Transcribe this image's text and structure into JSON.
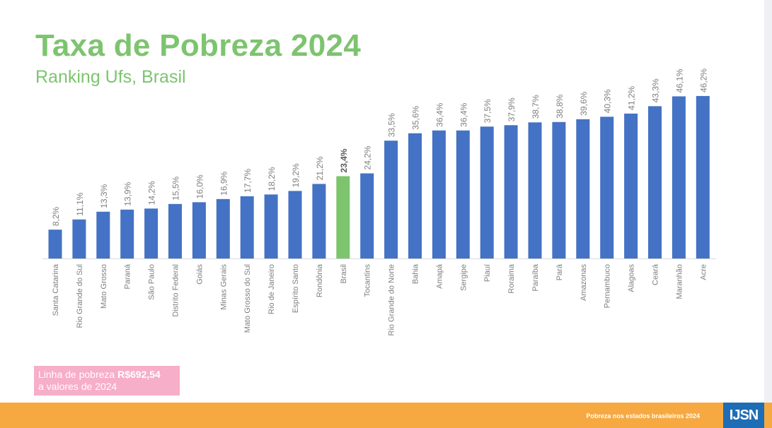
{
  "title": "Taxa de Pobreza 2024",
  "subtitle": "Ranking Ufs, Brasil",
  "note": {
    "line1_prefix": "Linha de pobreza ",
    "line1_value": "R$692,54",
    "line2": "a valores de 2024"
  },
  "footer": {
    "text": "Pobreza nos estados brasileiros 2024",
    "logo": "IJSN"
  },
  "colors": {
    "bar": "#4472c4",
    "highlight": "#7dc46f",
    "title": "#7dc46f",
    "footer": "#f7a941",
    "note": "#f7aec8"
  },
  "chart_data": {
    "type": "bar",
    "categories": [
      "Santa Catarina",
      "Rio Grande do Sul",
      "Mato Grosso",
      "Paraná",
      "São Paulo",
      "Distrito Federal",
      "Goiás",
      "Minas Gerais",
      "Mato Grosso do Sul",
      "Rio de Janeiro",
      "Espírito Santo",
      "Rondônia",
      "Brasil",
      "Tocantins",
      "Rio Grande do Norte",
      "Bahia",
      "Amapá",
      "Sergipe",
      "Piauí",
      "Roraima",
      "Paraíba",
      "Pará",
      "Amazonas",
      "Pernambuco",
      "Alagoas",
      "Ceará",
      "Maranhão",
      "Acre"
    ],
    "values": [
      8.2,
      11.1,
      13.3,
      13.9,
      14.2,
      15.5,
      16.0,
      16.9,
      17.7,
      18.2,
      19.2,
      21.2,
      23.4,
      24.2,
      33.5,
      35.6,
      36.4,
      36.4,
      37.5,
      37.9,
      38.7,
      38.8,
      39.6,
      40.3,
      41.2,
      43.3,
      46.1,
      46.2
    ],
    "labels": [
      "8,2%",
      "11,1%",
      "13,3%",
      "13,9%",
      "14,2%",
      "15,5%",
      "16,0%",
      "16,9%",
      "17,7%",
      "18,2%",
      "19,2%",
      "21,2%",
      "23,4%",
      "24,2%",
      "33,5%",
      "35,6%",
      "36,4%",
      "36,4%",
      "37,5%",
      "37,9%",
      "38,7%",
      "38,8%",
      "39,6%",
      "40,3%",
      "41,2%",
      "43,3%",
      "46,1%",
      "46,2%"
    ],
    "highlight": "Brasil",
    "ylim": [
      0,
      50
    ],
    "grid": false
  }
}
